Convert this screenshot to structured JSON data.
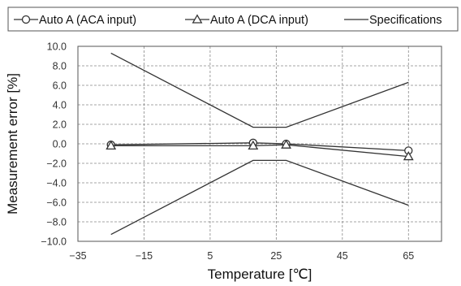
{
  "chart_data": {
    "type": "line",
    "xlabel": "Temperature [℃]",
    "ylabel": "Measurement error [%]",
    "xlim": [
      -35,
      75
    ],
    "ylim": [
      -10,
      10
    ],
    "x_ticks": [
      "−35",
      "−15",
      "5",
      "25",
      "45",
      "65"
    ],
    "x_tick_values": [
      -35,
      -15,
      5,
      25,
      45,
      65
    ],
    "y_ticks": [
      "10.0",
      "8.0",
      "6.0",
      "4.0",
      "2.0",
      "0.0",
      "−2.0",
      "−4.0",
      "−6.0",
      "−8.0",
      "−10.0"
    ],
    "y_tick_values": [
      10,
      8,
      6,
      4,
      2,
      0,
      -2,
      -4,
      -6,
      -8,
      -10
    ],
    "grid": true,
    "legend_position": "top",
    "series": [
      {
        "name": "Auto A (ACA input)",
        "marker": "circle",
        "color": "#333333",
        "points": [
          [
            -25,
            -0.1
          ],
          [
            18,
            0.1
          ],
          [
            28,
            0.0
          ],
          [
            65,
            -0.7
          ]
        ]
      },
      {
        "name": "Auto A (DCA input)",
        "marker": "triangle",
        "color": "#333333",
        "points": [
          [
            -25,
            -0.2
          ],
          [
            18,
            -0.2
          ],
          [
            28,
            -0.1
          ],
          [
            65,
            -1.3
          ]
        ]
      },
      {
        "name": "Specifications",
        "marker": "none",
        "color": "#333333",
        "points": [
          [
            -25,
            9.3
          ],
          [
            18,
            1.7
          ],
          [
            28,
            1.7
          ],
          [
            65,
            6.3
          ]
        ],
        "lower_points": [
          [
            -25,
            -9.3
          ],
          [
            18,
            -1.7
          ],
          [
            28,
            -1.7
          ],
          [
            65,
            -6.3
          ]
        ]
      }
    ]
  }
}
